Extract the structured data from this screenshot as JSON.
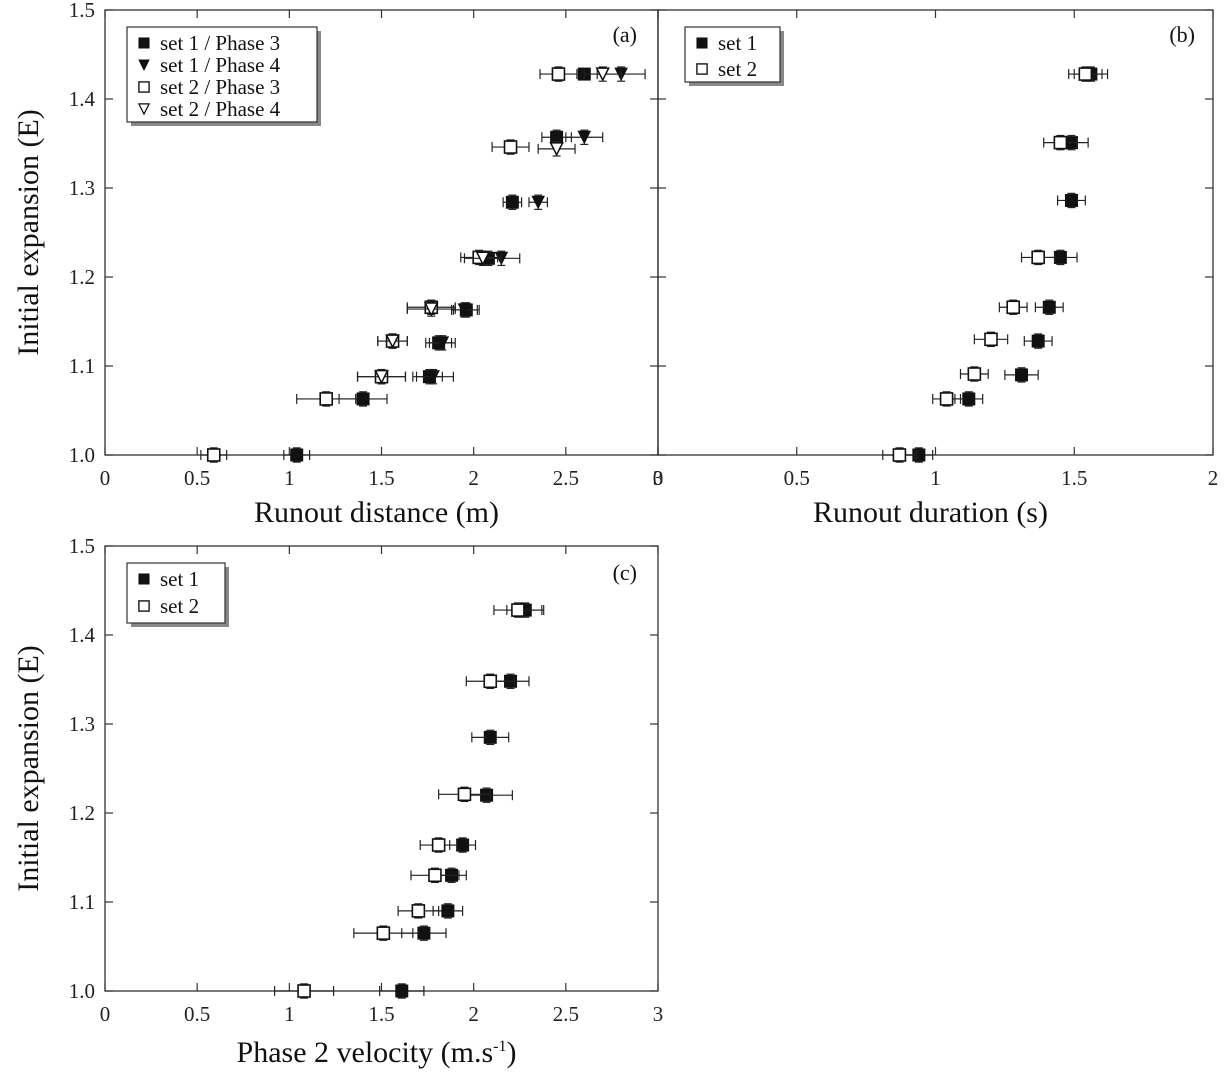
{
  "chart_data": [
    {
      "type": "scatter",
      "panel_label": "(a)",
      "xlabel": "Runout distance (m)",
      "ylabel": "Initial expansion (E)",
      "xlim": [
        0,
        3
      ],
      "ylim": [
        1.0,
        1.5
      ],
      "x_ticks": [
        "0",
        "0.5",
        "1",
        "1.5",
        "2",
        "2.5",
        "3"
      ],
      "x_tick_values": [
        0,
        0.5,
        1,
        1.5,
        2,
        2.5,
        3
      ],
      "y_ticks": [
        "1.0",
        "1.1",
        "1.2",
        "1.3",
        "1.4",
        "1.5"
      ],
      "y_tick_values": [
        1.0,
        1.1,
        1.2,
        1.3,
        1.4,
        1.5
      ],
      "legend_position": "top-left",
      "series": [
        {
          "name": "set 1 / Phase 3",
          "marker": "filled-square",
          "points": [
            {
              "x": 1.04,
              "y": 1.0,
              "xerr": 0.07,
              "yerr": 0.008
            },
            {
              "x": 1.4,
              "y": 1.063,
              "xerr": 0.13,
              "yerr": 0.008
            },
            {
              "x": 1.76,
              "y": 1.088,
              "xerr": 0.07,
              "yerr": 0.008
            },
            {
              "x": 1.81,
              "y": 1.126,
              "xerr": 0.07,
              "yerr": 0.008
            },
            {
              "x": 1.96,
              "y": 1.163,
              "xerr": 0.07,
              "yerr": 0.008
            },
            {
              "x": 2.08,
              "y": 1.221,
              "xerr": 0.07,
              "yerr": 0.008
            },
            {
              "x": 2.21,
              "y": 1.284,
              "xerr": 0.05,
              "yerr": 0.008
            },
            {
              "x": 2.45,
              "y": 1.357,
              "xerr": 0.08,
              "yerr": 0.008
            },
            {
              "x": 2.6,
              "y": 1.428,
              "xerr": 0.0,
              "yerr": 0.0
            }
          ]
        },
        {
          "name": "set 1 / Phase 4",
          "marker": "filled-triangle-down",
          "points": [
            {
              "x": 1.78,
              "y": 1.088,
              "xerr": 0.11,
              "yerr": 0.008
            },
            {
              "x": 1.83,
              "y": 1.126,
              "xerr": 0.07,
              "yerr": 0.008
            },
            {
              "x": 1.95,
              "y": 1.163,
              "xerr": 0.07,
              "yerr": 0.008
            },
            {
              "x": 2.15,
              "y": 1.221,
              "xerr": 0.1,
              "yerr": 0.008
            },
            {
              "x": 2.35,
              "y": 1.284,
              "xerr": 0.05,
              "yerr": 0.008
            },
            {
              "x": 2.6,
              "y": 1.357,
              "xerr": 0.1,
              "yerr": 0.008
            },
            {
              "x": 2.8,
              "y": 1.428,
              "xerr": 0.13,
              "yerr": 0.008
            }
          ]
        },
        {
          "name": "set 2 / Phase 3",
          "marker": "open-square",
          "points": [
            {
              "x": 0.59,
              "y": 1.0,
              "xerr": 0.07,
              "yerr": 0.008
            },
            {
              "x": 1.2,
              "y": 1.063,
              "xerr": 0.16,
              "yerr": 0.008
            },
            {
              "x": 1.5,
              "y": 1.088,
              "xerr": 0.13,
              "yerr": 0.008
            },
            {
              "x": 1.56,
              "y": 1.128,
              "xerr": 0.08,
              "yerr": 0.008
            },
            {
              "x": 1.77,
              "y": 1.166,
              "xerr": 0.13,
              "yerr": 0.008
            },
            {
              "x": 2.03,
              "y": 1.222,
              "xerr": 0.1,
              "yerr": 0.008
            },
            {
              "x": 2.2,
              "y": 1.346,
              "xerr": 0.1,
              "yerr": 0.008
            },
            {
              "x": 2.46,
              "y": 1.428,
              "xerr": 0.1,
              "yerr": 0.008
            }
          ]
        },
        {
          "name": "set 2 / Phase 4",
          "marker": "open-triangle-down",
          "points": [
            {
              "x": 1.5,
              "y": 1.088,
              "xerr": 0.13,
              "yerr": 0.008
            },
            {
              "x": 1.56,
              "y": 1.128,
              "xerr": 0.08,
              "yerr": 0.008
            },
            {
              "x": 1.77,
              "y": 1.164,
              "xerr": 0.13,
              "yerr": 0.008
            },
            {
              "x": 2.05,
              "y": 1.221,
              "xerr": 0.1,
              "yerr": 0.008
            },
            {
              "x": 2.45,
              "y": 1.344,
              "xerr": 0.1,
              "yerr": 0.008
            },
            {
              "x": 2.7,
              "y": 1.428,
              "xerr": 0.1,
              "yerr": 0.008
            }
          ]
        }
      ]
    },
    {
      "type": "scatter",
      "panel_label": "(b)",
      "xlabel": "Runout duration (s)",
      "ylabel": "",
      "xlim": [
        0,
        2
      ],
      "ylim": [
        1.0,
        1.5
      ],
      "x_ticks": [
        "0",
        "0.5",
        "1",
        "1.5",
        "2"
      ],
      "x_tick_values": [
        0,
        0.5,
        1,
        1.5,
        2
      ],
      "y_ticks": [],
      "y_tick_values": [
        1.0,
        1.1,
        1.2,
        1.3,
        1.4,
        1.5
      ],
      "legend_position": "top-left",
      "series": [
        {
          "name": "set 1",
          "marker": "filled-square",
          "points": [
            {
              "x": 0.94,
              "y": 1.0,
              "xerr": 0.05,
              "yerr": 0.008
            },
            {
              "x": 1.12,
              "y": 1.063,
              "xerr": 0.05,
              "yerr": 0.008
            },
            {
              "x": 1.31,
              "y": 1.09,
              "xerr": 0.06,
              "yerr": 0.008
            },
            {
              "x": 1.37,
              "y": 1.128,
              "xerr": 0.05,
              "yerr": 0.008
            },
            {
              "x": 1.41,
              "y": 1.166,
              "xerr": 0.05,
              "yerr": 0.008
            },
            {
              "x": 1.45,
              "y": 1.222,
              "xerr": 0.06,
              "yerr": 0.008
            },
            {
              "x": 1.49,
              "y": 1.286,
              "xerr": 0.05,
              "yerr": 0.008
            },
            {
              "x": 1.49,
              "y": 1.351,
              "xerr": 0.06,
              "yerr": 0.008
            },
            {
              "x": 1.56,
              "y": 1.428,
              "xerr": 0.06,
              "yerr": 0.008
            }
          ]
        },
        {
          "name": "set 2",
          "marker": "open-square",
          "points": [
            {
              "x": 0.87,
              "y": 1.0,
              "xerr": 0.06,
              "yerr": 0.008
            },
            {
              "x": 1.04,
              "y": 1.063,
              "xerr": 0.05,
              "yerr": 0.008
            },
            {
              "x": 1.14,
              "y": 1.091,
              "xerr": 0.05,
              "yerr": 0.008
            },
            {
              "x": 1.2,
              "y": 1.13,
              "xerr": 0.06,
              "yerr": 0.008
            },
            {
              "x": 1.28,
              "y": 1.166,
              "xerr": 0.05,
              "yerr": 0.008
            },
            {
              "x": 1.37,
              "y": 1.222,
              "xerr": 0.06,
              "yerr": 0.008
            },
            {
              "x": 1.45,
              "y": 1.351,
              "xerr": 0.06,
              "yerr": 0.008
            },
            {
              "x": 1.54,
              "y": 1.428,
              "xerr": 0.06,
              "yerr": 0.008
            }
          ]
        }
      ]
    },
    {
      "type": "scatter",
      "panel_label": "(c)",
      "xlabel": "Phase 2 velocity (m.s",
      "xlabel_superscript": "-1",
      "xlabel_suffix": ")",
      "ylabel": "Initial expansion (E)",
      "xlim": [
        0,
        3
      ],
      "ylim": [
        1.0,
        1.5
      ],
      "x_ticks": [
        "0",
        "0.5",
        "1",
        "1.5",
        "2",
        "2.5",
        "3"
      ],
      "x_tick_values": [
        0,
        0.5,
        1,
        1.5,
        2,
        2.5,
        3
      ],
      "y_ticks": [
        "1.0",
        "1.1",
        "1.2",
        "1.3",
        "1.4",
        "1.5"
      ],
      "y_tick_values": [
        1.0,
        1.1,
        1.2,
        1.3,
        1.4,
        1.5
      ],
      "legend_position": "top-left",
      "series": [
        {
          "name": "set 1",
          "marker": "filled-square",
          "points": [
            {
              "x": 1.61,
              "y": 1.0,
              "xerr": 0.12,
              "yerr": 0.008
            },
            {
              "x": 1.73,
              "y": 1.065,
              "xerr": 0.12,
              "yerr": 0.008
            },
            {
              "x": 1.86,
              "y": 1.09,
              "xerr": 0.08,
              "yerr": 0.008
            },
            {
              "x": 1.88,
              "y": 1.13,
              "xerr": 0.08,
              "yerr": 0.008
            },
            {
              "x": 1.94,
              "y": 1.164,
              "xerr": 0.07,
              "yerr": 0.008
            },
            {
              "x": 2.07,
              "y": 1.22,
              "xerr": 0.14,
              "yerr": 0.008
            },
            {
              "x": 2.09,
              "y": 1.285,
              "xerr": 0.1,
              "yerr": 0.008
            },
            {
              "x": 2.2,
              "y": 1.348,
              "xerr": 0.1,
              "yerr": 0.008
            },
            {
              "x": 2.28,
              "y": 1.428,
              "xerr": 0.1,
              "yerr": 0.008
            }
          ]
        },
        {
          "name": "set 2",
          "marker": "open-square",
          "points": [
            {
              "x": 1.08,
              "y": 1.0,
              "xerr": 0.16,
              "yerr": 0.008
            },
            {
              "x": 1.51,
              "y": 1.065,
              "xerr": 0.16,
              "yerr": 0.008
            },
            {
              "x": 1.7,
              "y": 1.09,
              "xerr": 0.11,
              "yerr": 0.008
            },
            {
              "x": 1.79,
              "y": 1.13,
              "xerr": 0.13,
              "yerr": 0.008
            },
            {
              "x": 1.81,
              "y": 1.164,
              "xerr": 0.1,
              "yerr": 0.008
            },
            {
              "x": 1.95,
              "y": 1.221,
              "xerr": 0.14,
              "yerr": 0.008
            },
            {
              "x": 2.09,
              "y": 1.348,
              "xerr": 0.13,
              "yerr": 0.008
            },
            {
              "x": 2.24,
              "y": 1.428,
              "xerr": 0.13,
              "yerr": 0.008
            }
          ]
        }
      ]
    }
  ]
}
